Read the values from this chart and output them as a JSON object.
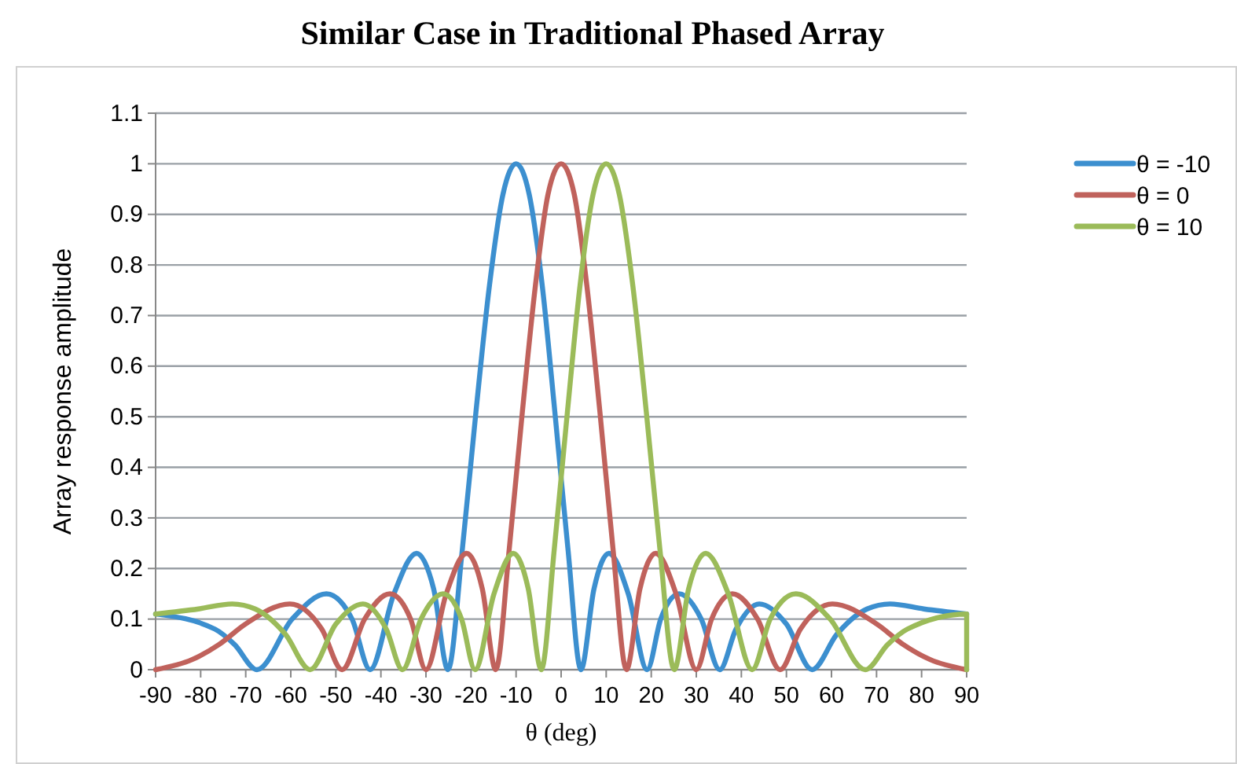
{
  "chart_data": {
    "type": "line",
    "title": "Similar Case in Traditional Phased Array",
    "xlabel": "θ (deg)",
    "ylabel": "Array response amplitude",
    "xlim": [
      -90,
      90
    ],
    "xticks": [
      -90,
      -80,
      -70,
      -60,
      -50,
      -40,
      -30,
      -20,
      -10,
      0,
      10,
      20,
      30,
      40,
      50,
      60,
      70,
      80,
      90
    ],
    "ylim": [
      0,
      1.1
    ],
    "yticks": [
      0,
      0.1,
      0.2,
      0.3,
      0.4,
      0.5,
      0.6,
      0.7,
      0.8,
      0.9,
      1,
      1.1
    ],
    "grid": "y",
    "legend": "top right",
    "marker": "none",
    "line_style": "solid",
    "series": [
      {
        "name": "θ = -10",
        "color": "#3c8fcf",
        "x": [
          -90,
          -76.8,
          -72.5,
          -67.5,
          -59.7,
          -52.1,
          -46.4,
          -42.4,
          -37.1,
          -32.1,
          -28.3,
          -25.1,
          -21.9,
          -18.9,
          -15.9,
          -12.9,
          -10,
          -7.1,
          -4.2,
          -1.4,
          1.5,
          4.4,
          7.3,
          10.6,
          14.9,
          19.1,
          22.1,
          26.2,
          31.1,
          35.2,
          38.8,
          44,
          50,
          55.7,
          61.2,
          67.9,
          73,
          80.5,
          90
        ],
        "values": [
          0.11,
          0.08,
          0.05,
          0,
          0.1,
          0.15,
          0.1,
          0,
          0.15,
          0.23,
          0.16,
          0,
          0.24,
          0.51,
          0.76,
          0.94,
          1,
          0.94,
          0.76,
          0.51,
          0.24,
          0,
          0.16,
          0.23,
          0.15,
          0,
          0.1,
          0.15,
          0.1,
          0,
          0.08,
          0.13,
          0.09,
          0,
          0.07,
          0.12,
          0.13,
          0.12,
          0.11
        ]
      },
      {
        "name": "θ = 0",
        "color": "#c0625c",
        "x": [
          -90,
          -81.9,
          -75.9,
          -70.1,
          -60.2,
          -53.1,
          -48.6,
          -43.6,
          -38,
          -33.4,
          -30,
          -25.5,
          -21,
          -17.5,
          -14.5,
          -11.5,
          -8.6,
          -5.7,
          -2.9,
          0,
          2.9,
          5.7,
          8.6,
          11.5,
          14.5,
          17.5,
          21,
          25.5,
          30,
          33.4,
          38,
          43.6,
          48.6,
          53.1,
          60.2,
          70.1,
          75.9,
          81.9,
          90
        ],
        "values": [
          0,
          0.02,
          0.05,
          0.09,
          0.13,
          0.08,
          0,
          0.1,
          0.15,
          0.1,
          0,
          0.15,
          0.23,
          0.16,
          0,
          0.24,
          0.51,
          0.76,
          0.94,
          1,
          0.94,
          0.76,
          0.51,
          0.24,
          0,
          0.16,
          0.23,
          0.15,
          0,
          0.1,
          0.15,
          0.1,
          0,
          0.08,
          0.13,
          0.09,
          0.05,
          0.02,
          0
        ]
      },
      {
        "name": "θ = 10",
        "color": "#9bbb59",
        "x": [
          -90,
          -80.5,
          -73,
          -67.9,
          -61.2,
          -55.7,
          -50,
          -44,
          -38.8,
          -35.2,
          -31.1,
          -26.2,
          -22.1,
          -19.1,
          -14.9,
          -10.6,
          -7.3,
          -4.4,
          -1.5,
          1.4,
          4.2,
          7.1,
          10,
          12.9,
          15.9,
          18.9,
          21.9,
          25.1,
          28.3,
          32.1,
          37.1,
          42.4,
          46.4,
          52.1,
          59.7,
          67.5,
          72.5,
          76.8,
          90,
          90
        ],
        "values": [
          0.11,
          0.12,
          0.13,
          0.12,
          0.07,
          0,
          0.09,
          0.13,
          0.08,
          0,
          0.1,
          0.15,
          0.1,
          0,
          0.15,
          0.23,
          0.16,
          0,
          0.24,
          0.51,
          0.76,
          0.94,
          1,
          0.94,
          0.76,
          0.51,
          0.24,
          0,
          0.16,
          0.23,
          0.15,
          0,
          0.1,
          0.15,
          0.1,
          0,
          0.05,
          0.08,
          0.11,
          0
        ]
      }
    ]
  }
}
